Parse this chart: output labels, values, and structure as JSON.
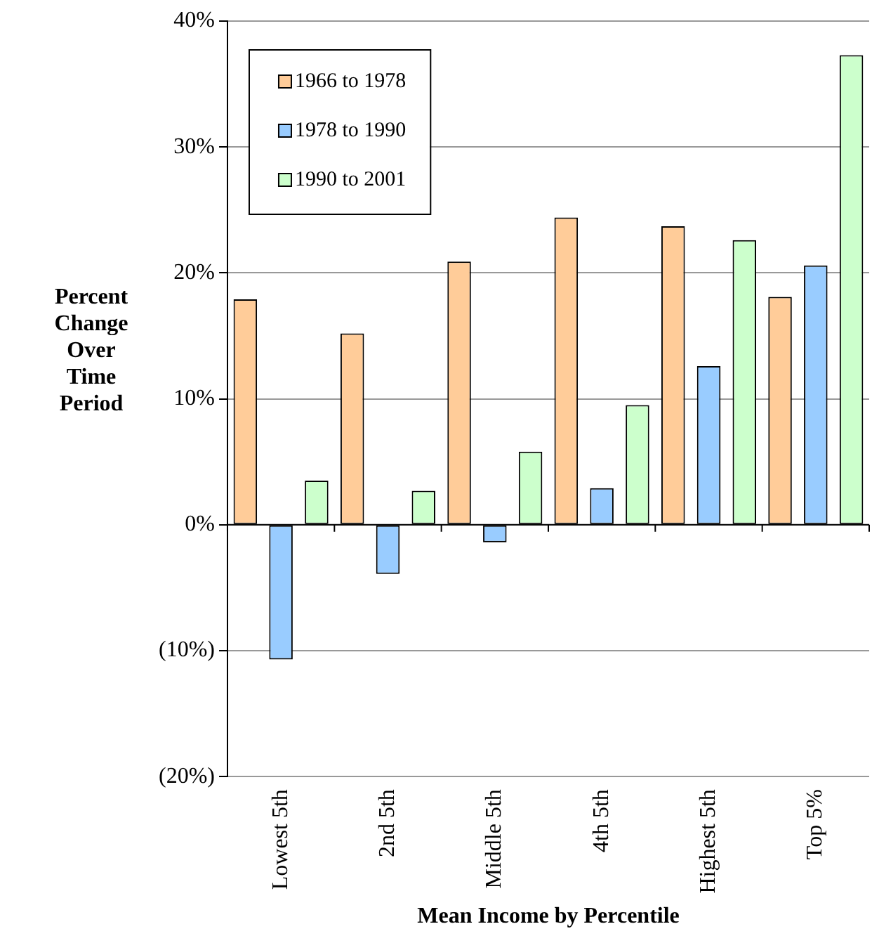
{
  "chart_data": {
    "type": "bar",
    "xlabel": "Mean Income by Percentile",
    "ylabel": "Percent\nChange\nOver\nTime\nPeriod",
    "categories": [
      "Lowest 5th",
      "2nd 5th",
      "Middle 5th",
      "4th 5th",
      "Highest 5th",
      "Top 5%"
    ],
    "series": [
      {
        "name": "1966 to 1978",
        "color": "#ffcc99",
        "values": [
          17.9,
          15.2,
          20.9,
          24.4,
          23.7,
          18.1
        ]
      },
      {
        "name": "1978 to 1990",
        "color": "#99ccff",
        "values": [
          -10.7,
          -3.9,
          -1.4,
          2.9,
          12.6,
          20.6
        ]
      },
      {
        "name": "1990 to 2001",
        "color": "#ccffcc",
        "values": [
          3.5,
          2.7,
          5.8,
          9.5,
          22.6,
          37.3
        ]
      }
    ],
    "ylim": [
      -20,
      40
    ],
    "yticks": [
      {
        "value": -20,
        "label": "(20%)"
      },
      {
        "value": -10,
        "label": "(10%)"
      },
      {
        "value": 0,
        "label": "0%"
      },
      {
        "value": 10,
        "label": "10%"
      },
      {
        "value": 20,
        "label": "20%"
      },
      {
        "value": 30,
        "label": "30%"
      },
      {
        "value": 40,
        "label": "40%"
      }
    ],
    "grid": "y",
    "legend": "top left"
  }
}
